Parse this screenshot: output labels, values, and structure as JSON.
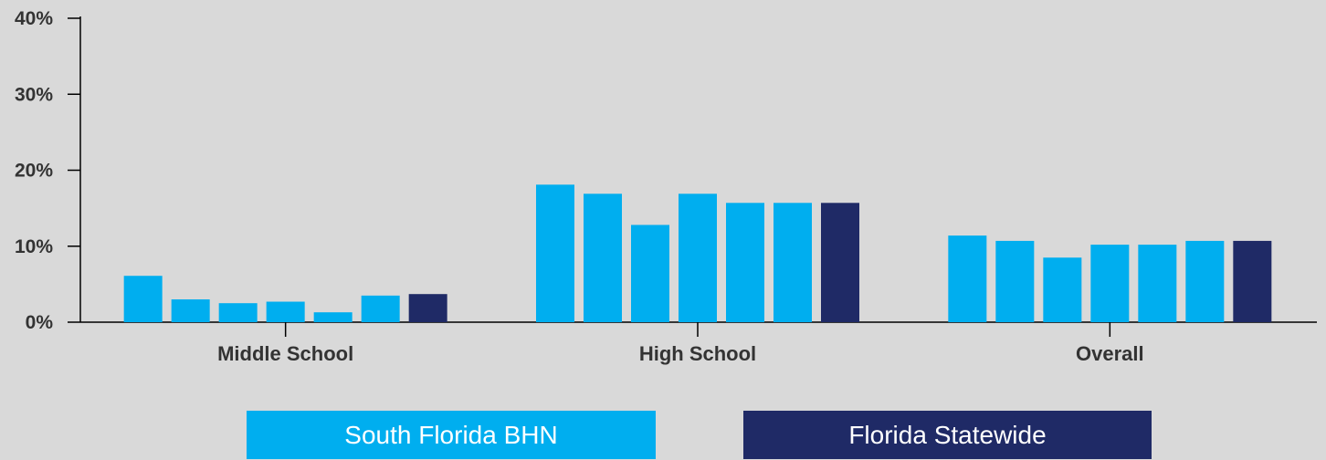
{
  "chart_data": {
    "type": "bar",
    "categories": [
      "Middle School",
      "High School",
      "Overall"
    ],
    "series": [
      {
        "name": "South Florida BHN",
        "color": "#00aeef",
        "values": [
          6.1,
          18.1,
          11.4
        ]
      },
      {
        "name": "",
        "color": "#00aeef",
        "values": [
          3.0,
          16.9,
          10.7
        ]
      },
      {
        "name": "",
        "color": "#00aeef",
        "values": [
          2.5,
          12.8,
          8.5
        ]
      },
      {
        "name": "",
        "color": "#00aeef",
        "values": [
          2.7,
          16.9,
          10.2
        ]
      },
      {
        "name": "",
        "color": "#00aeef",
        "values": [
          1.3,
          15.7,
          10.2
        ]
      },
      {
        "name": "",
        "color": "#00aeef",
        "values": [
          3.5,
          15.7,
          10.7
        ]
      },
      {
        "name": "Florida Statewide",
        "color": "#1f2a66",
        "values": [
          3.7,
          15.7,
          10.7
        ]
      }
    ],
    "first_series_values_high_school_note": "",
    "ylim": [
      0,
      40
    ],
    "yticks": [
      "0%",
      "10%",
      "20%",
      "30%",
      "40%"
    ],
    "legend": [
      {
        "label": "South Florida BHN",
        "color": "#00aeef"
      },
      {
        "label": "Florida Statewide",
        "color": "#1f2a66"
      }
    ],
    "legend_position": "bottom"
  }
}
